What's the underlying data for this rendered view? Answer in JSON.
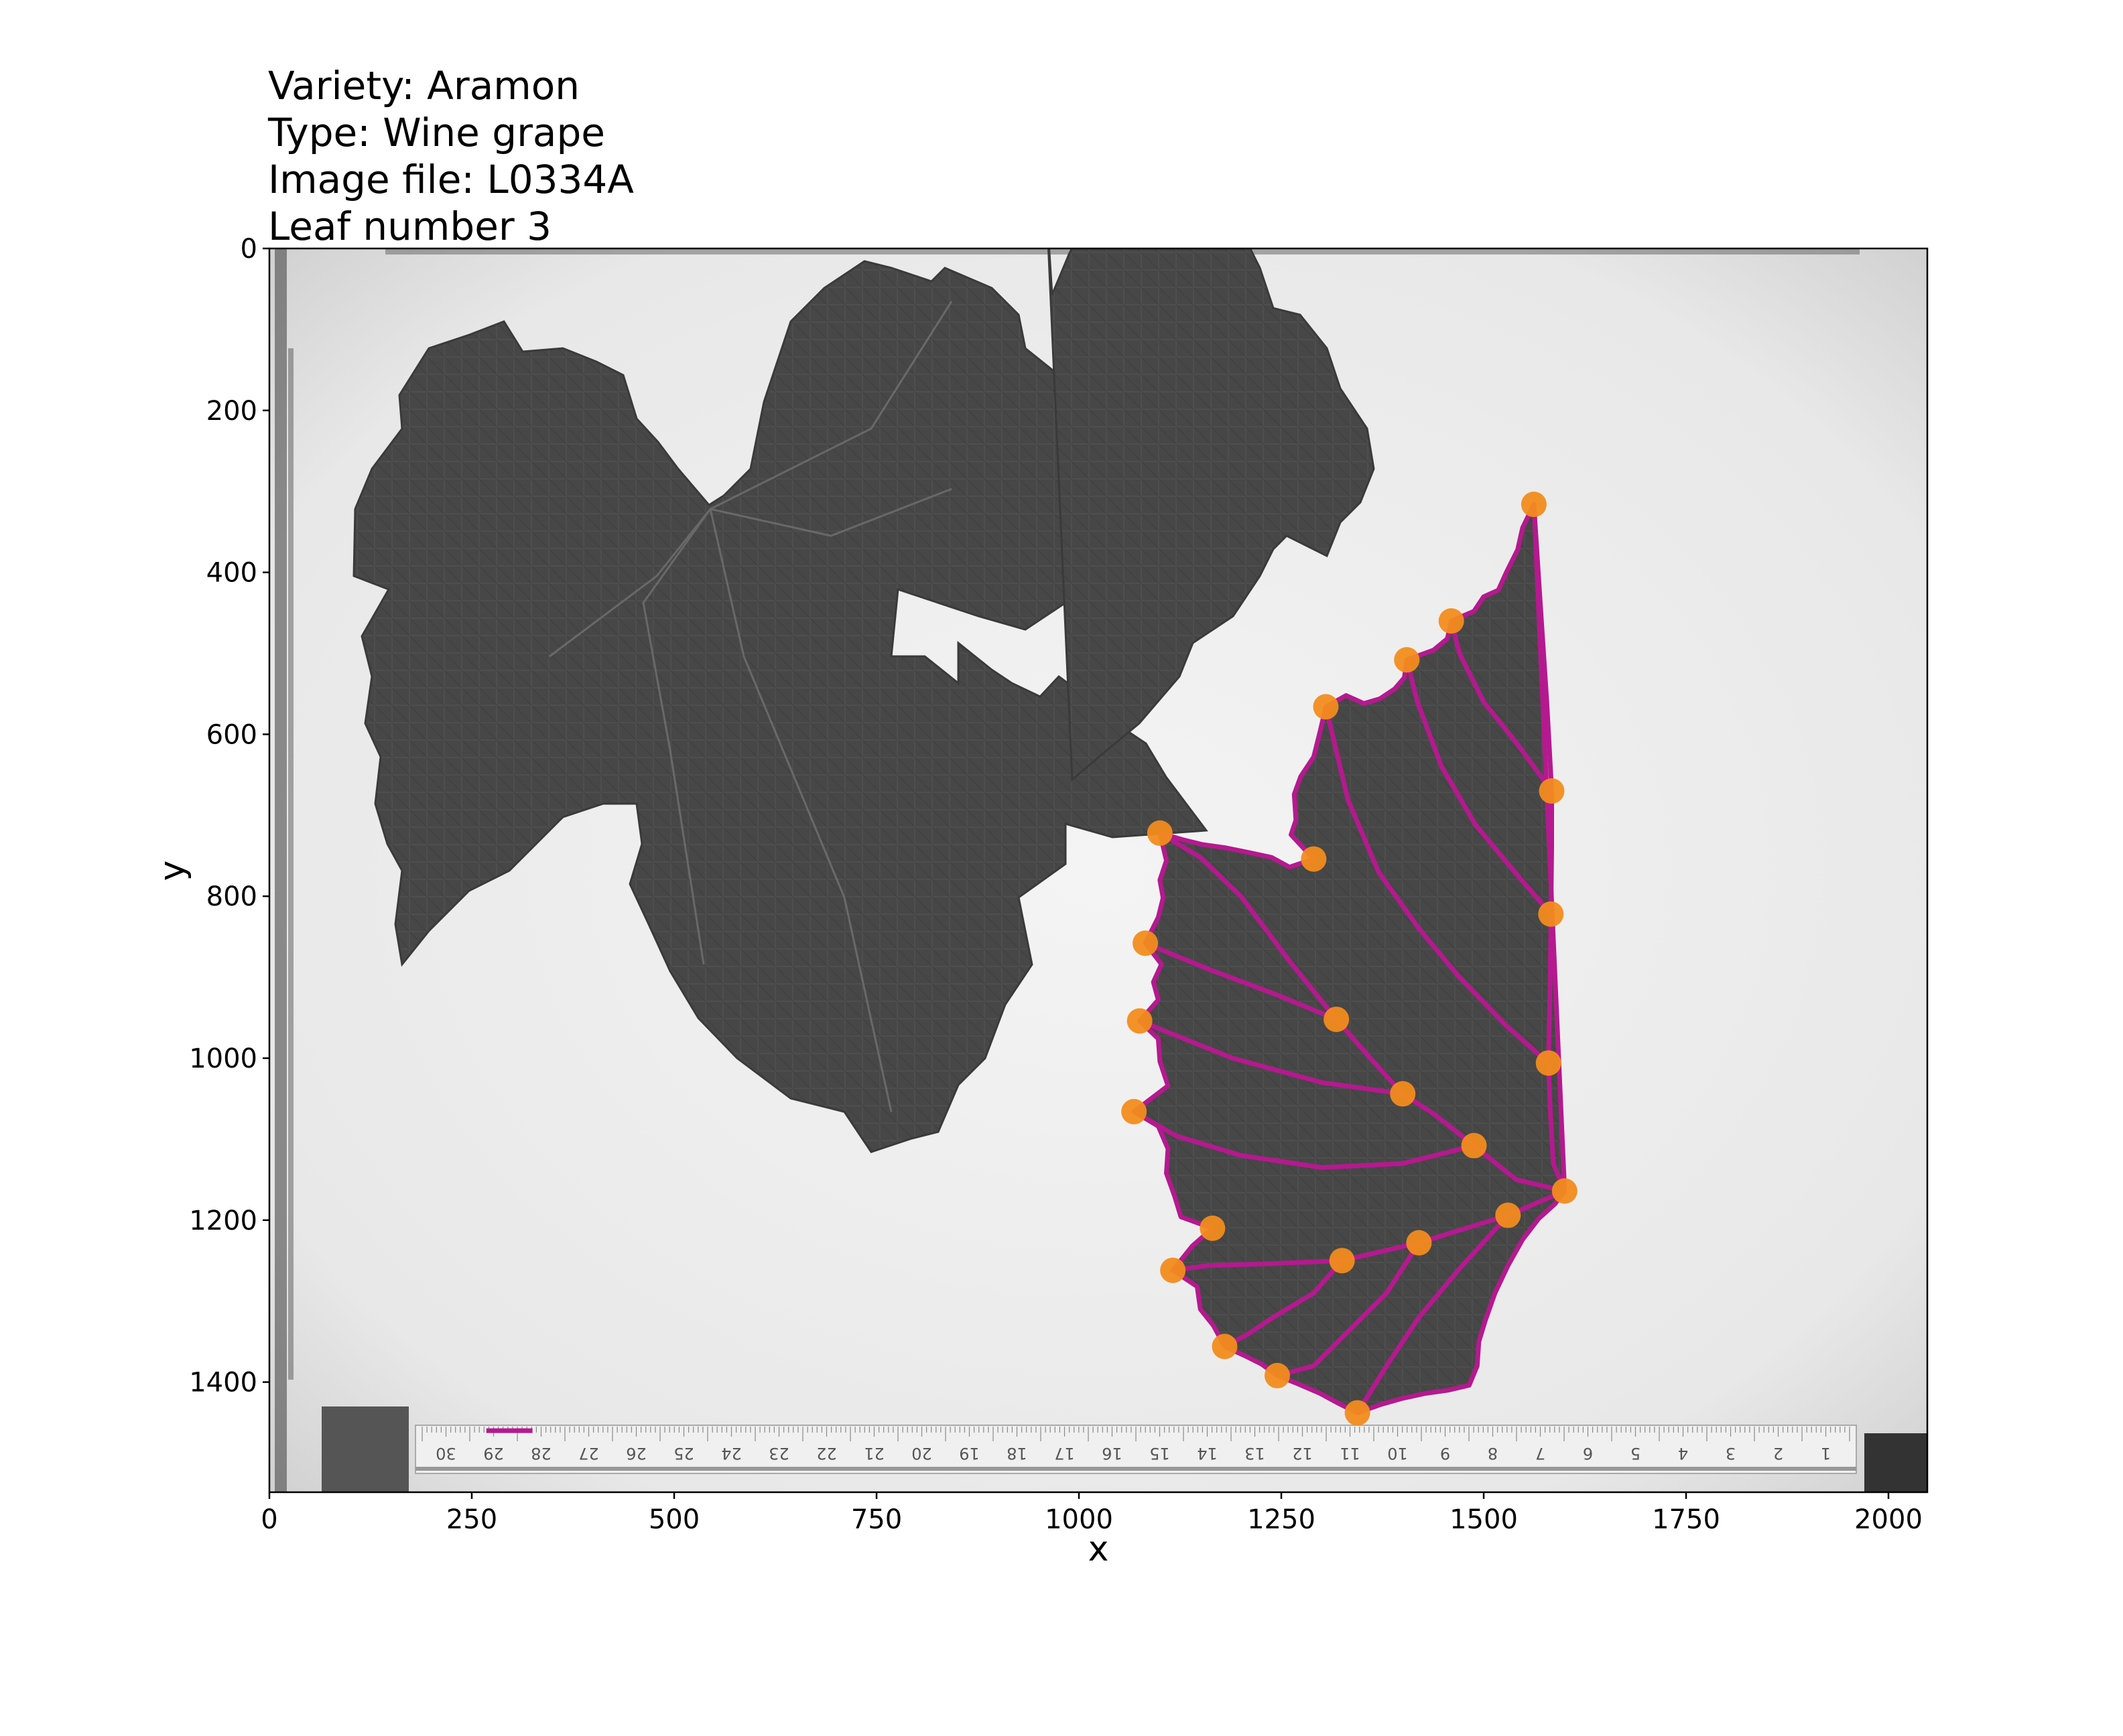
{
  "header": {
    "variety": "Variety: Aramon",
    "type": "Type: Wine grape",
    "image_file": "Image file: L0334A",
    "leaf_number": "Leaf number 3"
  },
  "colors": {
    "trace": "#b5198f",
    "landmark": "#f28c1e",
    "leaf": "#474747",
    "background": "#ececec"
  },
  "ruler_numbers": [
    "30",
    "29",
    "28",
    "27",
    "26",
    "25",
    "24",
    "23",
    "22",
    "21",
    "20",
    "19",
    "18",
    "17",
    "16",
    "15",
    "14",
    "13",
    "12",
    "11",
    "10",
    "9",
    "8",
    "7",
    "6",
    "5",
    "4",
    "3",
    "2",
    "1"
  ],
  "chart_data": {
    "type": "scatter",
    "xlabel": "x",
    "ylabel": "y",
    "xlim": [
      0,
      2048
    ],
    "ylim": [
      1536,
      0
    ],
    "x_ticks": [
      0,
      250,
      500,
      750,
      1000,
      1250,
      1500,
      1750,
      2000
    ],
    "y_ticks": [
      0,
      200,
      400,
      600,
      800,
      1000,
      1200,
      1400
    ],
    "grid": false,
    "landmarks": [
      {
        "x": 1562,
        "y": 316
      },
      {
        "x": 1460,
        "y": 460
      },
      {
        "x": 1405,
        "y": 508
      },
      {
        "x": 1305,
        "y": 566
      },
      {
        "x": 1584,
        "y": 670
      },
      {
        "x": 1100,
        "y": 722
      },
      {
        "x": 1290,
        "y": 754
      },
      {
        "x": 1583,
        "y": 822
      },
      {
        "x": 1082,
        "y": 858
      },
      {
        "x": 1318,
        "y": 952
      },
      {
        "x": 1075,
        "y": 954
      },
      {
        "x": 1580,
        "y": 1006
      },
      {
        "x": 1400,
        "y": 1044
      },
      {
        "x": 1068,
        "y": 1066
      },
      {
        "x": 1488,
        "y": 1108
      },
      {
        "x": 1600,
        "y": 1164
      },
      {
        "x": 1530,
        "y": 1194
      },
      {
        "x": 1165,
        "y": 1210
      },
      {
        "x": 1420,
        "y": 1228
      },
      {
        "x": 1325,
        "y": 1250
      },
      {
        "x": 1116,
        "y": 1262
      },
      {
        "x": 1180,
        "y": 1356
      },
      {
        "x": 1245,
        "y": 1392
      },
      {
        "x": 1344,
        "y": 1438
      }
    ],
    "outline": [
      [
        1562,
        316
      ],
      [
        1548,
        345
      ],
      [
        1542,
        372
      ],
      [
        1528,
        400
      ],
      [
        1518,
        422
      ],
      [
        1500,
        430
      ],
      [
        1488,
        448
      ],
      [
        1460,
        460
      ],
      [
        1455,
        482
      ],
      [
        1438,
        496
      ],
      [
        1405,
        508
      ],
      [
        1402,
        530
      ],
      [
        1390,
        544
      ],
      [
        1372,
        556
      ],
      [
        1352,
        562
      ],
      [
        1330,
        552
      ],
      [
        1305,
        566
      ],
      [
        1298,
        596
      ],
      [
        1290,
        628
      ],
      [
        1274,
        652
      ],
      [
        1266,
        674
      ],
      [
        1268,
        706
      ],
      [
        1262,
        724
      ],
      [
        1290,
        754
      ],
      [
        1260,
        764
      ],
      [
        1238,
        752
      ],
      [
        1210,
        746
      ],
      [
        1180,
        740
      ],
      [
        1152,
        736
      ],
      [
        1128,
        730
      ],
      [
        1100,
        722
      ],
      [
        1108,
        756
      ],
      [
        1100,
        780
      ],
      [
        1104,
        802
      ],
      [
        1098,
        826
      ],
      [
        1082,
        858
      ],
      [
        1102,
        884
      ],
      [
        1092,
        906
      ],
      [
        1098,
        928
      ],
      [
        1075,
        954
      ],
      [
        1098,
        976
      ],
      [
        1100,
        1004
      ],
      [
        1110,
        1034
      ],
      [
        1068,
        1066
      ],
      [
        1098,
        1084
      ],
      [
        1110,
        1112
      ],
      [
        1108,
        1142
      ],
      [
        1118,
        1170
      ],
      [
        1126,
        1196
      ],
      [
        1165,
        1210
      ],
      [
        1140,
        1232
      ],
      [
        1116,
        1262
      ],
      [
        1146,
        1282
      ],
      [
        1150,
        1310
      ],
      [
        1166,
        1330
      ],
      [
        1180,
        1356
      ],
      [
        1206,
        1368
      ],
      [
        1226,
        1378
      ],
      [
        1245,
        1392
      ],
      [
        1270,
        1402
      ],
      [
        1298,
        1414
      ],
      [
        1320,
        1426
      ],
      [
        1344,
        1438
      ],
      [
        1372,
        1428
      ],
      [
        1400,
        1420
      ],
      [
        1428,
        1414
      ],
      [
        1456,
        1410
      ],
      [
        1482,
        1404
      ],
      [
        1492,
        1380
      ],
      [
        1494,
        1350
      ],
      [
        1502,
        1324
      ],
      [
        1514,
        1290
      ],
      [
        1530,
        1256
      ],
      [
        1548,
        1224
      ],
      [
        1568,
        1198
      ],
      [
        1588,
        1180
      ],
      [
        1600,
        1164
      ]
    ],
    "veins": [
      [
        [
          1600,
          1164
        ],
        [
          1586,
          1130
        ],
        [
          1582,
          1060
        ],
        [
          1580,
          1006
        ],
        [
          1582,
          910
        ],
        [
          1583,
          822
        ],
        [
          1584,
          740
        ],
        [
          1584,
          670
        ],
        [
          1578,
          560
        ],
        [
          1570,
          440
        ],
        [
          1562,
          316
        ]
      ],
      [
        [
          1584,
          670
        ],
        [
          1540,
          610
        ],
        [
          1500,
          560
        ],
        [
          1470,
          500
        ],
        [
          1460,
          460
        ]
      ],
      [
        [
          1583,
          822
        ],
        [
          1540,
          772
        ],
        [
          1490,
          712
        ],
        [
          1448,
          640
        ],
        [
          1418,
          560
        ],
        [
          1405,
          508
        ]
      ],
      [
        [
          1580,
          1006
        ],
        [
          1528,
          960
        ],
        [
          1470,
          900
        ],
        [
          1420,
          840
        ],
        [
          1370,
          770
        ],
        [
          1332,
          680
        ],
        [
          1305,
          566
        ]
      ],
      [
        [
          1600,
          1164
        ],
        [
          1540,
          1150
        ],
        [
          1488,
          1108
        ],
        [
          1440,
          1070
        ],
        [
          1400,
          1044
        ],
        [
          1360,
          1000
        ],
        [
          1318,
          952
        ],
        [
          1260,
          880
        ],
        [
          1200,
          800
        ],
        [
          1150,
          752
        ],
        [
          1100,
          722
        ]
      ],
      [
        [
          1318,
          952
        ],
        [
          1240,
          920
        ],
        [
          1160,
          890
        ],
        [
          1082,
          858
        ]
      ],
      [
        [
          1400,
          1044
        ],
        [
          1300,
          1030
        ],
        [
          1190,
          1000
        ],
        [
          1075,
          954
        ]
      ],
      [
        [
          1488,
          1108
        ],
        [
          1400,
          1130
        ],
        [
          1300,
          1135
        ],
        [
          1200,
          1120
        ],
        [
          1120,
          1096
        ],
        [
          1068,
          1066
        ]
      ],
      [
        [
          1600,
          1164
        ],
        [
          1530,
          1194
        ],
        [
          1420,
          1228
        ],
        [
          1325,
          1250
        ],
        [
          1230,
          1254
        ],
        [
          1160,
          1256
        ],
        [
          1116,
          1262
        ]
      ],
      [
        [
          1530,
          1194
        ],
        [
          1470,
          1260
        ],
        [
          1420,
          1320
        ],
        [
          1380,
          1380
        ],
        [
          1344,
          1438
        ]
      ],
      [
        [
          1420,
          1228
        ],
        [
          1380,
          1290
        ],
        [
          1330,
          1340
        ],
        [
          1290,
          1380
        ],
        [
          1245,
          1392
        ]
      ],
      [
        [
          1325,
          1250
        ],
        [
          1290,
          1290
        ],
        [
          1240,
          1320
        ],
        [
          1210,
          1340
        ],
        [
          1180,
          1356
        ]
      ]
    ],
    "scale_bar": {
      "x": [
        268,
        325
      ],
      "y": 1460
    }
  }
}
